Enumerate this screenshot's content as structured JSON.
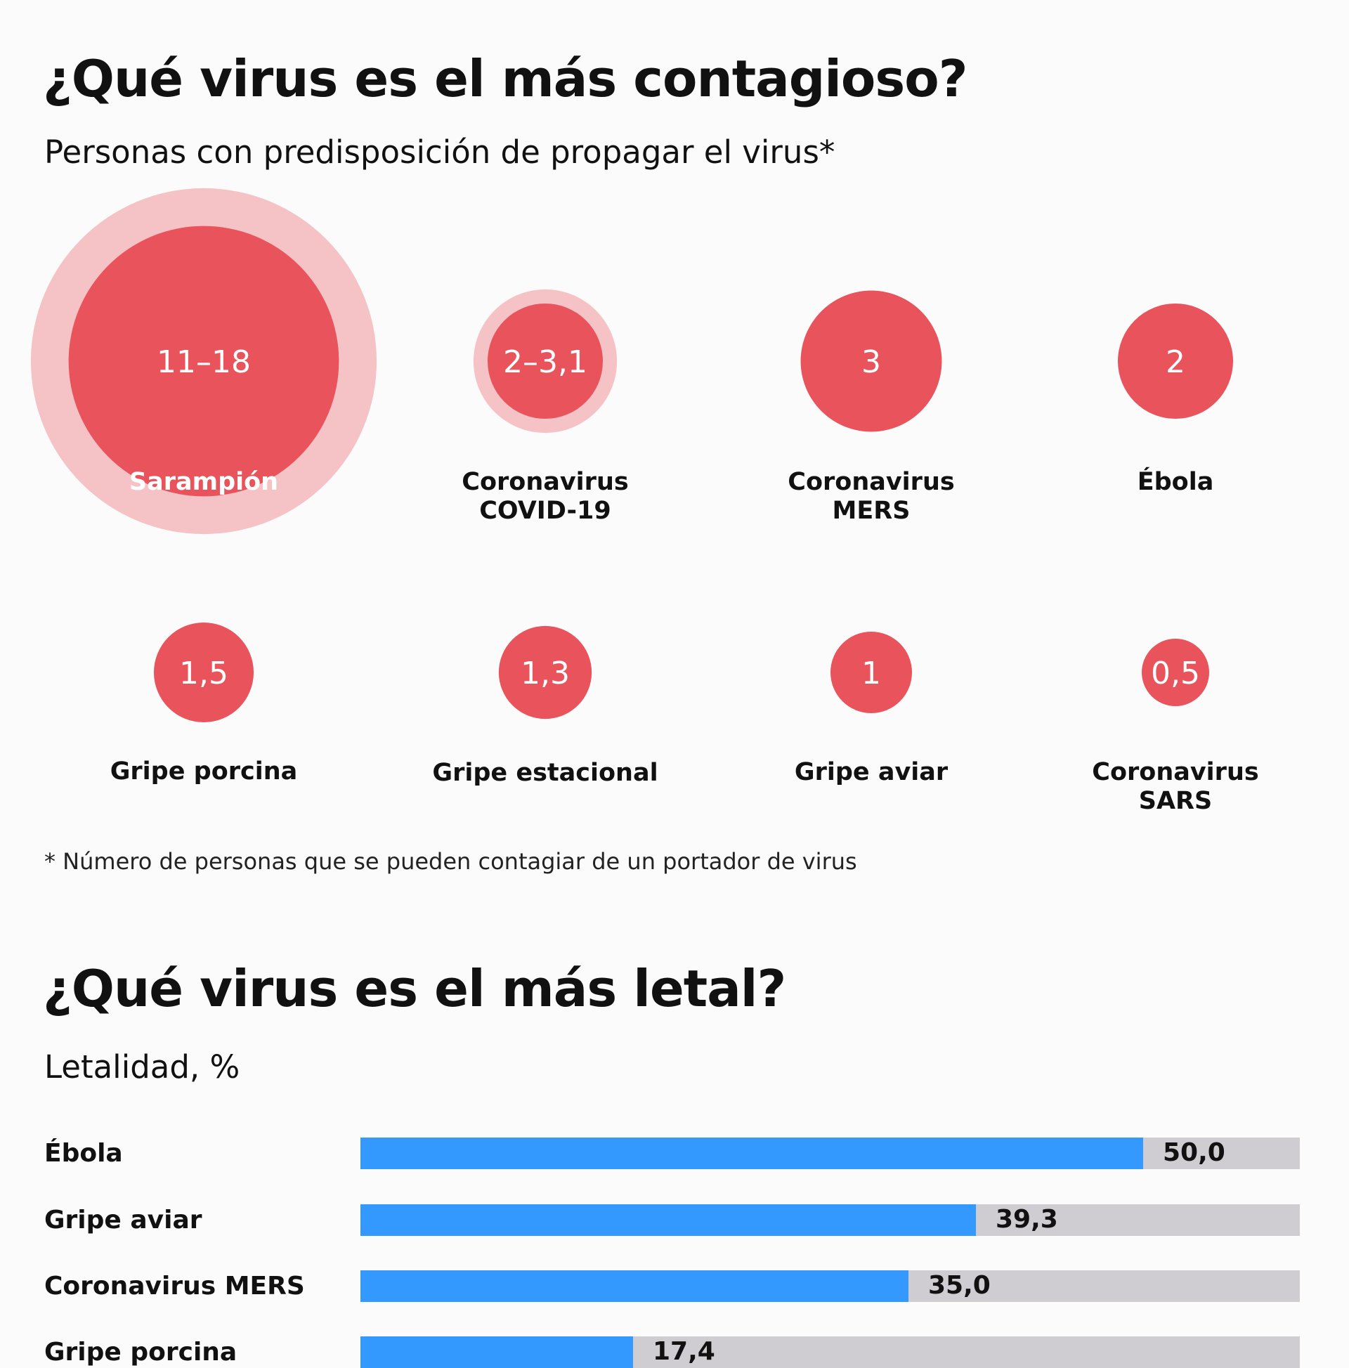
{
  "section1": {
    "title": "¿Qué virus es el más contagioso?",
    "subtitle": "Personas con predisposición de propagar el virus*",
    "footnote": "* Número de personas que se pueden contagiar de un portador de virus"
  },
  "section2": {
    "title": "¿Qué virus es el más letal?",
    "subtitle": "Letalidad, %"
  },
  "colors": {
    "bubble": "#e9545c",
    "bubble_range": "#f5c3c5",
    "bar": "#3399ff",
    "bar_track": "#cfcdd2"
  },
  "chart_data": [
    {
      "type": "bubble",
      "title": "¿Qué virus es el más contagioso?",
      "subtitle": "Personas con predisposición de propagar el virus*",
      "series": [
        {
          "name": [
            "Sarampión"
          ],
          "label": "11–18",
          "min": 11,
          "max": 18
        },
        {
          "name": [
            "Coronavirus",
            "COVID-19"
          ],
          "label": "2–3,1",
          "min": 2,
          "max": 3.1
        },
        {
          "name": [
            "Coronavirus",
            "MERS"
          ],
          "label": "3",
          "min": 3,
          "max": 3
        },
        {
          "name": [
            "Ébola"
          ],
          "label": "2",
          "min": 2,
          "max": 2
        },
        {
          "name": [
            "Gripe porcina"
          ],
          "label": "1,5",
          "min": 1.5,
          "max": 1.5
        },
        {
          "name": [
            "Gripe estacional"
          ],
          "label": "1,3",
          "min": 1.3,
          "max": 1.3
        },
        {
          "name": [
            "Gripe aviar"
          ],
          "label": "1",
          "min": 1,
          "max": 1
        },
        {
          "name": [
            "Coronavirus",
            "SARS"
          ],
          "label": "0,5",
          "min": 0.5,
          "max": 0.5
        }
      ]
    },
    {
      "type": "bar",
      "title": "¿Qué virus es el más letal?",
      "subtitle": "Letalidad, %",
      "xlim": [
        0,
        60
      ],
      "categories": [
        "Ébola",
        "Gripe aviar",
        "Coronavirus MERS",
        "Gripe porcina"
      ],
      "values": [
        50.0,
        39.3,
        35.0,
        17.4
      ],
      "value_labels": [
        "50,0",
        "39,3",
        "35,0",
        "17,4"
      ]
    }
  ]
}
